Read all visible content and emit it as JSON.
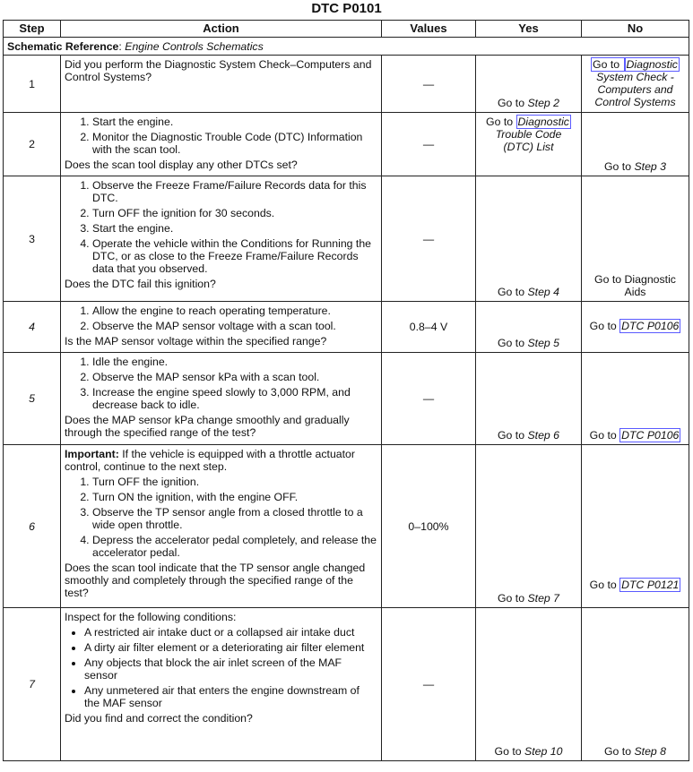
{
  "title": "DTC P0101",
  "headers": [
    "Step",
    "Action",
    "Values",
    "Yes",
    "No"
  ],
  "schematic": {
    "label": "Schematic Reference",
    "text": "Engine Controls Schematics"
  },
  "colors": {
    "link_box": "#5a5aff",
    "border": "#222222"
  },
  "rows": [
    {
      "step": "1",
      "italic": false,
      "h": 64,
      "intro": "Did you perform the Diagnostic System Check–Computers and Control Systems?",
      "list": "ol",
      "items": [],
      "question": "",
      "value": "—",
      "yes": {
        "valign": "bottom",
        "segs": [
          {
            "t": "Go to "
          },
          {
            "t": "Step 2",
            "i": true
          }
        ]
      },
      "no": {
        "valign": "top",
        "segs": [
          {
            "t": "Go to ",
            "l": true
          },
          {
            "t": "Diagnostic",
            "i": true,
            "l": true
          },
          {
            "t": " System Check - Computers and Control Systems",
            "i": true
          }
        ]
      }
    },
    {
      "step": "2",
      "italic": false,
      "h": 71,
      "intro": "",
      "list": "ol",
      "items": [
        "Start the engine.",
        "Monitor the Diagnostic Trouble Code (DTC) Information with the scan tool."
      ],
      "question": "Does the scan tool display any other DTCs set?",
      "value": "—",
      "yes": {
        "valign": "top",
        "segs": [
          {
            "t": "Go to "
          },
          {
            "t": "Diagnostic",
            "i": true,
            "l": true
          },
          {
            "t": " Trouble Code (DTC) List",
            "i": true
          }
        ]
      },
      "no": {
        "valign": "bottom",
        "segs": [
          {
            "t": "Go to "
          },
          {
            "t": "Step 3",
            "i": true
          }
        ]
      }
    },
    {
      "step": "3",
      "italic": false,
      "h": 140,
      "intro": "",
      "list": "ol",
      "items": [
        "Observe the Freeze Frame/Failure Records data for this DTC.",
        "Turn OFF the ignition for 30 seconds.",
        "Start the engine.",
        "Operate the vehicle within the Conditions for Running the DTC, or as close to the Freeze Frame/Failure Records data that you observed."
      ],
      "question": "Does the DTC fail this ignition?",
      "value": "—",
      "yes": {
        "valign": "bottom",
        "segs": [
          {
            "t": "Go to "
          },
          {
            "t": "Step 4",
            "i": true
          }
        ]
      },
      "no": {
        "valign": "bottom",
        "segs": [
          {
            "t": "Go to Diagnostic Aids"
          }
        ]
      }
    },
    {
      "step": "4",
      "italic": true,
      "h": 57,
      "intro": "",
      "list": "ol",
      "items": [
        "Allow the engine to reach operating temperature.",
        "Observe the MAP sensor voltage with a scan tool."
      ],
      "question": "Is the MAP sensor voltage within the specified range?",
      "value": "0.8–4 V",
      "yes": {
        "valign": "bottom",
        "segs": [
          {
            "t": "Go to "
          },
          {
            "t": "Step 5",
            "i": true
          }
        ]
      },
      "no": {
        "valign": "middle",
        "segs": [
          {
            "t": "Go to "
          },
          {
            "t": "DTC P0106",
            "i": true,
            "l": true
          }
        ]
      }
    },
    {
      "step": "5",
      "italic": true,
      "h": 103,
      "intro": "",
      "list": "ol",
      "items": [
        "Idle the engine.",
        "Observe the MAP sensor kPa with a scan tool.",
        "Increase the engine speed slowly to 3,000 RPM, and decrease back to idle."
      ],
      "question": "Does the MAP sensor kPa change smoothly and gradually through the specified range of the test?",
      "value": "—",
      "yes": {
        "valign": "bottom",
        "segs": [
          {
            "t": "Go to "
          },
          {
            "t": "Step 6",
            "i": true
          }
        ]
      },
      "no": {
        "valign": "bottom",
        "segs": [
          {
            "t": "Go to "
          },
          {
            "t": "DTC P0106",
            "i": true,
            "l": true
          }
        ]
      }
    },
    {
      "step": "6",
      "italic": true,
      "h": 182,
      "intro_bold": "Important:",
      "intro": " If the vehicle is equipped with a throttle actuator control, continue to the next step.",
      "list": "ol",
      "items": [
        "Turn OFF the ignition.",
        "Turn ON the ignition, with the engine OFF.",
        "Observe the TP sensor angle from a closed throttle to a wide open throttle.",
        "Depress the accelerator pedal completely, and release the accelerator pedal."
      ],
      "question": "Does the scan tool indicate that the TP sensor angle changed smoothly and completely through the specified range of the test?",
      "value": "0–100%",
      "yes": {
        "valign": "bottom",
        "segs": [
          {
            "t": "Go to "
          },
          {
            "t": "Step 7",
            "i": true
          }
        ]
      },
      "no": {
        "valign": "bottom",
        "pad": 18,
        "segs": [
          {
            "t": "Go to "
          },
          {
            "t": "DTC P0121",
            "i": true,
            "l": true
          }
        ]
      }
    },
    {
      "step": "7",
      "italic": true,
      "h": 171,
      "intro": "Inspect for the following conditions:",
      "list": "ul",
      "items": [
        "A restricted air intake duct or a collapsed air intake duct",
        "A dirty air filter element or a deteriorating air filter element",
        "Any objects that block the air inlet screen of the MAF sensor",
        "Any unmetered air that enters the engine downstream of the MAF sensor"
      ],
      "question": "Did you find and correct the condition?",
      "value": "—",
      "yes": {
        "valign": "bottom",
        "segs": [
          {
            "t": "Go to "
          },
          {
            "t": "Step 10",
            "i": true
          }
        ]
      },
      "no": {
        "valign": "bottom",
        "segs": [
          {
            "t": "Go to "
          },
          {
            "t": "Step 8",
            "i": true
          }
        ]
      }
    }
  ]
}
